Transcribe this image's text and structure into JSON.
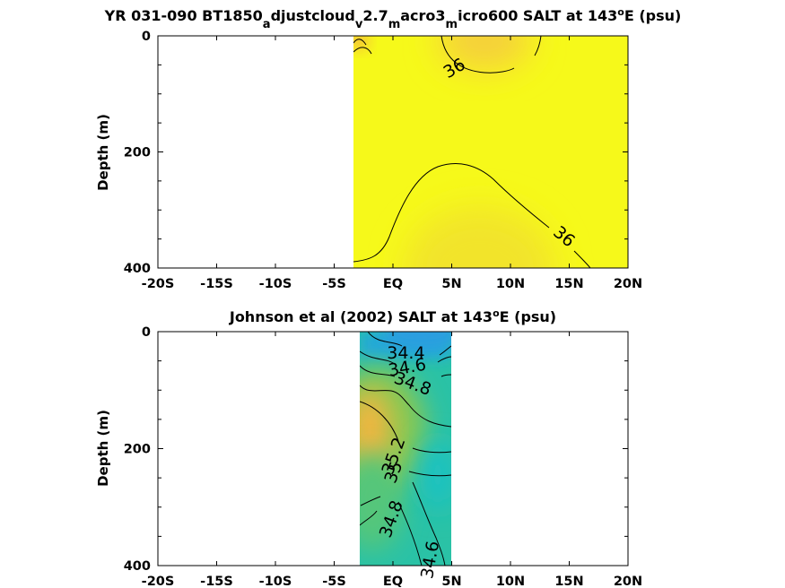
{
  "chart_data": [
    {
      "type": "contour",
      "title_parts": [
        "YR 031-090 BT1850",
        "a",
        "djustcloud",
        "v",
        "2.7",
        "m",
        "acro3",
        "m",
        "icro600 SALT at 143",
        "o",
        "E (psu)"
      ],
      "ylabel": "Depth (m)",
      "xlim": [
        -20,
        20
      ],
      "ylim": [
        0,
        400
      ],
      "x_ticks": [
        -20,
        -15,
        -10,
        -5,
        0,
        5,
        10,
        15,
        20
      ],
      "x_tick_labels": [
        "-20S",
        "-15S",
        "-10S",
        "-5S",
        "EQ",
        "5N",
        "10N",
        "15N",
        "20N"
      ],
      "y_ticks": [
        0,
        200,
        400
      ],
      "y_tick_labels": [
        "0",
        "200",
        "400"
      ],
      "data_extent_x": [
        -3,
        20
      ],
      "contour_labels": [
        {
          "text": "36",
          "x": 5.2,
          "y": 55,
          "angle": -30
        },
        {
          "text": "36",
          "x": 14.6,
          "y": 345,
          "angle": 40
        }
      ],
      "colors": {
        "background": "#f6f91a",
        "high_salt": "#f5c838",
        "mid": "#f3ec28"
      }
    },
    {
      "type": "contour",
      "title_parts": [
        "Johnson et al (2002) SALT at 143",
        "o",
        "E (psu)"
      ],
      "ylabel": "Depth (m)",
      "xlim": [
        -20,
        20
      ],
      "ylim": [
        0,
        400
      ],
      "x_ticks": [
        -20,
        -15,
        -10,
        -5,
        0,
        5,
        10,
        15,
        20
      ],
      "x_tick_labels": [
        "-20S",
        "-15S",
        "-10S",
        "-5S",
        "EQ",
        "5N",
        "10N",
        "15N",
        "20N"
      ],
      "y_ticks": [
        0,
        200,
        400
      ],
      "y_tick_labels": [
        "0",
        "200",
        "400"
      ],
      "data_extent_x": [
        -2.5,
        5
      ],
      "contour_labels": [
        {
          "text": "34.4",
          "x": 1.1,
          "y": 35,
          "angle": 0
        },
        {
          "text": "34.6",
          "x": 1.2,
          "y": 60,
          "angle": -10
        },
        {
          "text": "34.8",
          "x": 1.7,
          "y": 88,
          "angle": 20
        },
        {
          "text": "35.2",
          "x": 0.0,
          "y": 212,
          "angle": -70
        },
        {
          "text": "35",
          "x": 0.0,
          "y": 240,
          "angle": -70
        },
        {
          "text": "34.8",
          "x": -0.2,
          "y": 320,
          "angle": -70
        },
        {
          "text": "34.6",
          "x": 3.1,
          "y": 390,
          "angle": -80
        }
      ],
      "colors": {
        "fresh": "#20a8d8",
        "mid": "#28c6a4",
        "green": "#7ac85a",
        "salty": "#f7b43c"
      }
    }
  ]
}
